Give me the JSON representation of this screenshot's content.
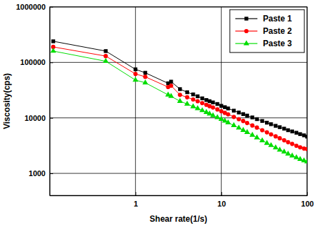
{
  "chart_data": {
    "type": "line",
    "x_label": "Shear rate(1/s)",
    "y_label": "Viscosity(cps)",
    "log": true,
    "grid": true,
    "legend": "upper-right",
    "xlim": [
      0.1,
      100
    ],
    "ylim": [
      400,
      1000000
    ],
    "xticks": [
      1,
      10,
      100
    ],
    "yticks": [
      1000,
      10000,
      100000,
      1000000
    ],
    "x": [
      0.11,
      0.45,
      1.0,
      1.3,
      2.4,
      2.6,
      3.3,
      4.0,
      4.7,
      5.3,
      6.0,
      6.7,
      7.3,
      8.0,
      9.0,
      10,
      11,
      12,
      14,
      16,
      18,
      20,
      23,
      26,
      30,
      34,
      38,
      43,
      48,
      54,
      60,
      67,
      75,
      83,
      92,
      100
    ],
    "series": [
      {
        "name": "Paste 1",
        "color": "#000000",
        "marker": "square",
        "values": [
          240000,
          160000,
          75000,
          65000,
          42000,
          45000,
          33000,
          29000,
          26500,
          24500,
          22500,
          21000,
          20000,
          19000,
          17800,
          16500,
          15600,
          14800,
          13500,
          12500,
          11700,
          11000,
          10200,
          9500,
          8800,
          8200,
          7700,
          7200,
          6800,
          6400,
          6000,
          5700,
          5400,
          5100,
          4850,
          4600
        ]
      },
      {
        "name": "Paste 2",
        "color": "#ff0000",
        "marker": "circle",
        "values": [
          190000,
          130000,
          62000,
          55000,
          36000,
          38000,
          26000,
          23500,
          21500,
          20000,
          18500,
          17200,
          16300,
          15400,
          14200,
          13200,
          12300,
          11600,
          10400,
          9500,
          8800,
          8100,
          7300,
          6700,
          6000,
          5500,
          5050,
          4650,
          4300,
          3950,
          3650,
          3400,
          3150,
          2950,
          2800,
          2750
        ]
      },
      {
        "name": "Paste 3",
        "color": "#00dd00",
        "marker": "triangle",
        "values": [
          160000,
          105000,
          48000,
          43000,
          26000,
          24500,
          20000,
          17800,
          16000,
          14800,
          13600,
          12600,
          11800,
          11000,
          10200,
          9500,
          8800,
          8200,
          7300,
          6600,
          6000,
          5500,
          4900,
          4400,
          3900,
          3500,
          3200,
          2900,
          2650,
          2450,
          2250,
          2080,
          1930,
          1800,
          1700,
          1620
        ]
      }
    ]
  }
}
